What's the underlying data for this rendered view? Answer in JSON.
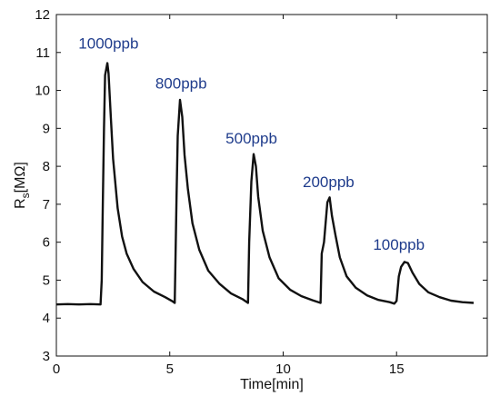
{
  "chart_data": {
    "type": "line",
    "xlabel": "Time[min]",
    "ylabel_main": "R",
    "ylabel_sub": "s",
    "ylabel_unit": "[MΩ]",
    "xlim": [
      0,
      19
    ],
    "ylim": [
      3,
      12
    ],
    "xticks": [
      0,
      5,
      10,
      15
    ],
    "yticks": [
      3,
      4,
      5,
      6,
      7,
      8,
      9,
      10,
      11,
      12
    ],
    "grid": false,
    "line_color": "#111111",
    "annotation_color": "#1f3c8c",
    "annotations": [
      {
        "text": "1000ppb",
        "x": 2.3,
        "y": 11.1
      },
      {
        "text": "800ppb",
        "x": 5.5,
        "y": 10.05
      },
      {
        "text": "500ppb",
        "x": 8.6,
        "y": 8.6
      },
      {
        "text": "200ppb",
        "x": 12.0,
        "y": 7.45
      },
      {
        "text": "100ppb",
        "x": 15.1,
        "y": 5.8
      }
    ],
    "series": [
      {
        "points": [
          [
            0.0,
            4.36
          ],
          [
            0.5,
            4.37
          ],
          [
            1.0,
            4.36
          ],
          [
            1.5,
            4.37
          ],
          [
            1.95,
            4.36
          ],
          [
            2.0,
            5.0
          ],
          [
            2.05,
            7.0
          ],
          [
            2.1,
            9.0
          ],
          [
            2.15,
            10.4
          ],
          [
            2.25,
            10.72
          ],
          [
            2.3,
            10.45
          ],
          [
            2.4,
            9.3
          ],
          [
            2.5,
            8.2
          ],
          [
            2.7,
            6.9
          ],
          [
            2.9,
            6.15
          ],
          [
            3.1,
            5.7
          ],
          [
            3.4,
            5.3
          ],
          [
            3.8,
            4.95
          ],
          [
            4.3,
            4.7
          ],
          [
            4.8,
            4.55
          ],
          [
            5.1,
            4.45
          ],
          [
            5.22,
            4.4
          ],
          [
            5.25,
            5.5
          ],
          [
            5.3,
            7.2
          ],
          [
            5.35,
            8.8
          ],
          [
            5.45,
            9.75
          ],
          [
            5.55,
            9.3
          ],
          [
            5.65,
            8.3
          ],
          [
            5.8,
            7.4
          ],
          [
            6.0,
            6.5
          ],
          [
            6.3,
            5.8
          ],
          [
            6.7,
            5.25
          ],
          [
            7.2,
            4.9
          ],
          [
            7.7,
            4.65
          ],
          [
            8.2,
            4.5
          ],
          [
            8.45,
            4.4
          ],
          [
            8.5,
            6.0
          ],
          [
            8.6,
            7.6
          ],
          [
            8.7,
            8.32
          ],
          [
            8.8,
            8.0
          ],
          [
            8.9,
            7.2
          ],
          [
            9.1,
            6.3
          ],
          [
            9.4,
            5.6
          ],
          [
            9.8,
            5.05
          ],
          [
            10.3,
            4.75
          ],
          [
            10.8,
            4.58
          ],
          [
            11.3,
            4.47
          ],
          [
            11.65,
            4.4
          ],
          [
            11.7,
            5.7
          ],
          [
            11.8,
            6.0
          ],
          [
            11.95,
            7.05
          ],
          [
            12.05,
            7.18
          ],
          [
            12.15,
            6.7
          ],
          [
            12.3,
            6.2
          ],
          [
            12.5,
            5.6
          ],
          [
            12.8,
            5.1
          ],
          [
            13.2,
            4.8
          ],
          [
            13.7,
            4.6
          ],
          [
            14.2,
            4.48
          ],
          [
            14.7,
            4.42
          ],
          [
            14.9,
            4.38
          ],
          [
            15.0,
            4.45
          ],
          [
            15.1,
            5.1
          ],
          [
            15.2,
            5.35
          ],
          [
            15.35,
            5.48
          ],
          [
            15.5,
            5.45
          ],
          [
            15.7,
            5.2
          ],
          [
            16.0,
            4.9
          ],
          [
            16.4,
            4.68
          ],
          [
            16.9,
            4.55
          ],
          [
            17.4,
            4.46
          ],
          [
            17.9,
            4.42
          ],
          [
            18.4,
            4.4
          ]
        ]
      }
    ]
  }
}
